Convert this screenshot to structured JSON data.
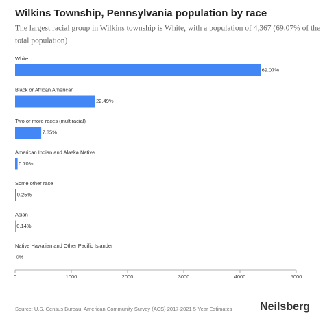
{
  "chart_data": {
    "type": "hbar",
    "title": "Wilkins Township, Pennsylvania population by race",
    "subtitle": [
      "The largest racial group in Wilkins township is White, with a population of 4,367 (69.07% of the",
      "total population)"
    ],
    "categories": [
      "White",
      "Black or African American",
      "Two or more races (multiracial)",
      "American Indian and Alaska Native",
      "Some other race",
      "Asian",
      "Native Hawaiian and Other Pacific Islander"
    ],
    "values": [
      4367,
      1422,
      465,
      44,
      16,
      9,
      0
    ],
    "value_labels": [
      "69.07%",
      "22.49%",
      "7.35%",
      "0.70%",
      "0.25%",
      "0.14%",
      "0%"
    ],
    "color": "#4287f5",
    "xlim": [
      0,
      5000
    ],
    "xticks": [
      0,
      1000,
      2000,
      3000,
      4000,
      5000
    ],
    "grid": false,
    "source": "Source: U.S. Census Bureau, American Community Survey (ACS) 2017-2021 5-Year Estimates",
    "brand": "Neilsberg"
  }
}
